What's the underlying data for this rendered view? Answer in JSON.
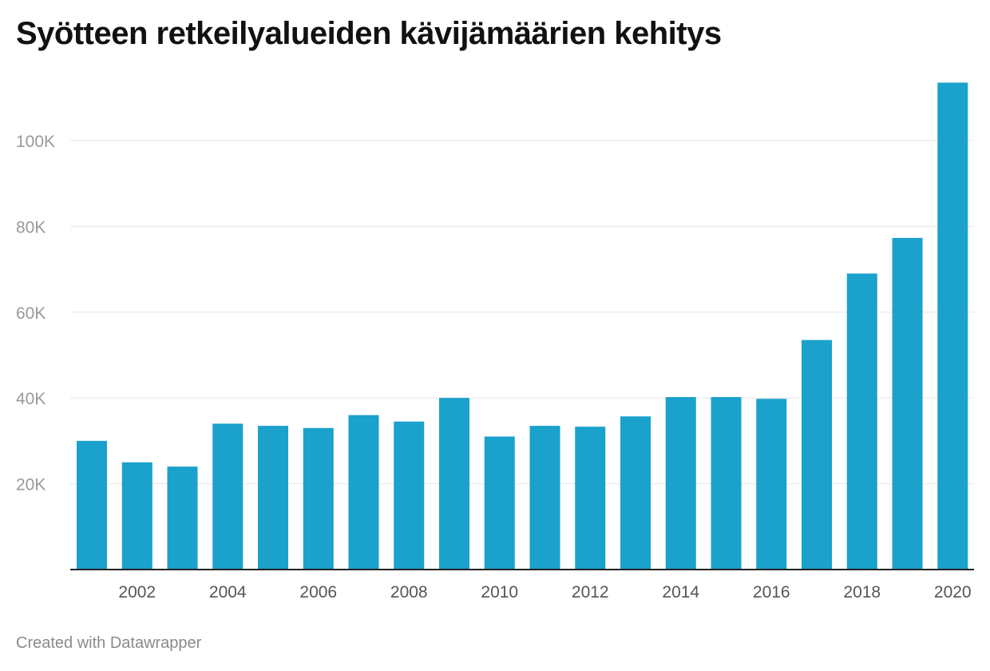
{
  "chart_data": {
    "type": "bar",
    "title": "Syötteen retkeilyalueiden kävijämäärien kehitys",
    "credit": "Created with Datawrapper",
    "categories": [
      2001,
      2002,
      2003,
      2004,
      2005,
      2006,
      2007,
      2008,
      2009,
      2010,
      2011,
      2012,
      2013,
      2014,
      2015,
      2016,
      2017,
      2018,
      2019,
      2020
    ],
    "values": [
      30000,
      25000,
      24000,
      34000,
      33500,
      33000,
      36000,
      34500,
      40000,
      31000,
      33500,
      33300,
      35700,
      40200,
      40200,
      39800,
      53500,
      69000,
      77300,
      113500
    ],
    "x_tick_labels": [
      "2002",
      "2004",
      "2006",
      "2008",
      "2010",
      "2012",
      "2014",
      "2016",
      "2018",
      "2020"
    ],
    "y_ticks": [
      20000,
      40000,
      60000,
      80000,
      100000
    ],
    "y_tick_labels": [
      "20K",
      "40K",
      "60K",
      "80K",
      "100K"
    ],
    "ylim": [
      0,
      116000
    ],
    "grid": true,
    "legend": "none",
    "bar_color": "#1aa1cc",
    "grid_color": "#e5e5e5",
    "axis_color": "#222222",
    "label_color": "#999999"
  }
}
